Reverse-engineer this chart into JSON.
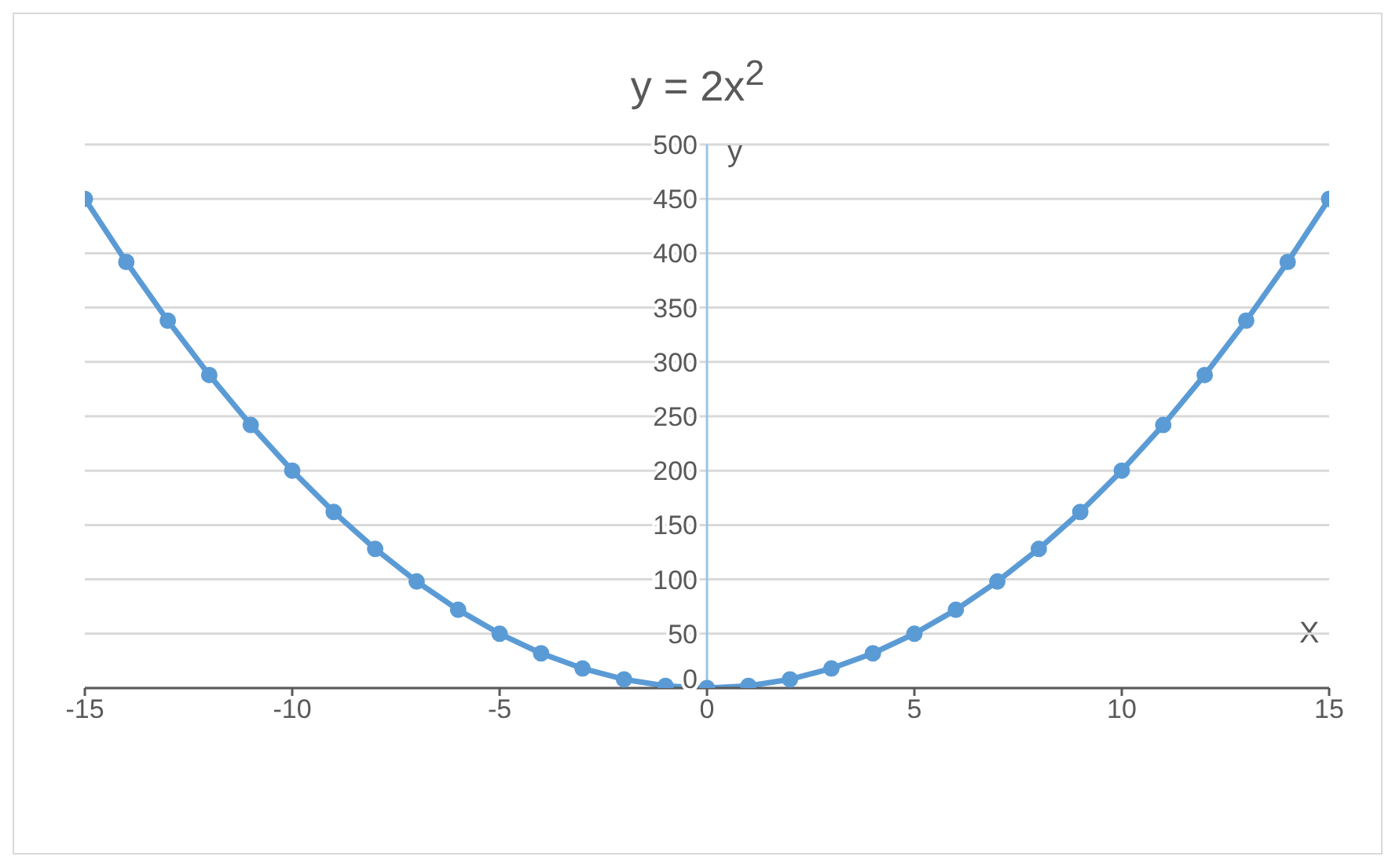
{
  "chart_data": {
    "type": "line",
    "title": "y = 2x$^{2}$",
    "xlabel": "X",
    "ylabel": "y",
    "x": [
      -15,
      -14,
      -13,
      -12,
      -11,
      -10,
      -9,
      -8,
      -7,
      -6,
      -5,
      -4,
      -3,
      -2,
      -1,
      0,
      1,
      2,
      3,
      4,
      5,
      6,
      7,
      8,
      9,
      10,
      11,
      12,
      13,
      14,
      15
    ],
    "series": [
      {
        "color": "#5b9bd5",
        "values": [
          450,
          392,
          338,
          288,
          242,
          200,
          162,
          128,
          98,
          72,
          50,
          32,
          18,
          8,
          2,
          0,
          2,
          8,
          18,
          32,
          50,
          72,
          98,
          128,
          162,
          200,
          242,
          288,
          338,
          392,
          450
        ]
      }
    ],
    "xlim": [
      -15,
      15
    ],
    "xticks": [
      -15,
      -10,
      -5,
      0,
      5,
      10,
      15
    ],
    "ylim": [
      0,
      500
    ],
    "yticks": [
      0,
      50,
      100,
      150,
      200,
      250,
      300,
      350,
      400,
      450,
      500
    ],
    "grid": "y",
    "marker": "circle",
    "line_style": "solid"
  }
}
